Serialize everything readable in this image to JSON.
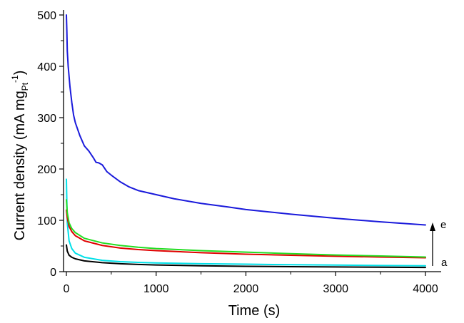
{
  "chart_data": {
    "type": "line",
    "title": "",
    "xlabel": "Time (s)",
    "ylabel": {
      "main": "Current density (mA mg",
      "sub": "Pt",
      "sup": "-1",
      "close": ")"
    },
    "xlim": [
      0,
      4000
    ],
    "ylim": [
      0,
      500
    ],
    "xticks": [
      0,
      1000,
      2000,
      3000,
      4000
    ],
    "yticks": [
      0,
      100,
      200,
      300,
      400,
      500
    ],
    "grid": false,
    "legend": "none",
    "annotations": {
      "bottom_label": "a",
      "top_label": "e",
      "arrow": "upward arrow at x ≈ 4050 from curve a to curve e"
    },
    "series": [
      {
        "color": "#000000",
        "points": [
          [
            0,
            52
          ],
          [
            10,
            40
          ],
          [
            30,
            32
          ],
          [
            60,
            28
          ],
          [
            100,
            25
          ],
          [
            200,
            21
          ],
          [
            400,
            17.5
          ],
          [
            600,
            15.5
          ],
          [
            800,
            14
          ],
          [
            1000,
            13
          ],
          [
            1500,
            11.5
          ],
          [
            2000,
            10.5
          ],
          [
            2500,
            9.8
          ],
          [
            3000,
            9.2
          ],
          [
            3500,
            8.7
          ],
          [
            4000,
            8.2
          ]
        ]
      },
      {
        "color": "#00e0e8",
        "points": [
          [
            0,
            180
          ],
          [
            10,
            95
          ],
          [
            30,
            60
          ],
          [
            60,
            45
          ],
          [
            100,
            36
          ],
          [
            200,
            28
          ],
          [
            400,
            22
          ],
          [
            600,
            19.5
          ],
          [
            800,
            18
          ],
          [
            1000,
            17
          ],
          [
            1500,
            15.5
          ],
          [
            2000,
            14.5
          ],
          [
            2500,
            13.5
          ],
          [
            3000,
            12.8
          ],
          [
            3500,
            12
          ],
          [
            4000,
            11.5
          ]
        ]
      },
      {
        "color": "#e00000",
        "points": [
          [
            0,
            120
          ],
          [
            10,
            105
          ],
          [
            30,
            88
          ],
          [
            60,
            78
          ],
          [
            100,
            70
          ],
          [
            200,
            60
          ],
          [
            400,
            51
          ],
          [
            600,
            46
          ],
          [
            800,
            43
          ],
          [
            1000,
            41
          ],
          [
            1500,
            37
          ],
          [
            2000,
            34
          ],
          [
            2500,
            32
          ],
          [
            3000,
            30
          ],
          [
            3500,
            28.5
          ],
          [
            4000,
            27
          ]
        ]
      },
      {
        "color": "#22dd22",
        "points": [
          [
            0,
            140
          ],
          [
            10,
            115
          ],
          [
            30,
            95
          ],
          [
            60,
            84
          ],
          [
            100,
            76
          ],
          [
            200,
            65
          ],
          [
            400,
            56
          ],
          [
            600,
            51
          ],
          [
            800,
            47.5
          ],
          [
            1000,
            45
          ],
          [
            1500,
            41
          ],
          [
            2000,
            38
          ],
          [
            2500,
            35
          ],
          [
            3000,
            32.5
          ],
          [
            3500,
            30.5
          ],
          [
            4000,
            28.5
          ]
        ]
      },
      {
        "color": "#1a1adb",
        "points": [
          [
            0,
            500
          ],
          [
            5,
            470
          ],
          [
            10,
            430
          ],
          [
            20,
            400
          ],
          [
            40,
            360
          ],
          [
            60,
            330
          ],
          [
            80,
            305
          ],
          [
            100,
            290
          ],
          [
            150,
            265
          ],
          [
            200,
            245
          ],
          [
            250,
            235
          ],
          [
            300,
            222
          ],
          [
            330,
            213
          ],
          [
            360,
            212
          ],
          [
            400,
            208
          ],
          [
            450,
            195
          ],
          [
            500,
            188
          ],
          [
            600,
            175
          ],
          [
            700,
            165
          ],
          [
            800,
            158
          ],
          [
            1000,
            150
          ],
          [
            1200,
            142
          ],
          [
            1500,
            133
          ],
          [
            1800,
            126
          ],
          [
            2000,
            121
          ],
          [
            2500,
            112
          ],
          [
            3000,
            104
          ],
          [
            3500,
            97
          ],
          [
            4000,
            91
          ]
        ]
      }
    ]
  }
}
